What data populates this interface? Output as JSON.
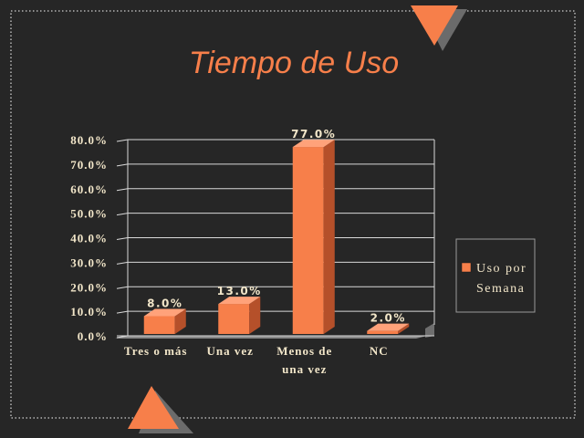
{
  "slide": {
    "title": "Tiempo de Uso",
    "accent_color": "#f77f4a",
    "shadow_color": "#6b6b6b",
    "background_color": "#262626",
    "text_color": "#f2e6c9"
  },
  "chart_data": {
    "type": "bar",
    "title": "",
    "xlabel": "",
    "ylabel": "",
    "categories": [
      "Tres o más",
      "Una vez",
      "Menos de\nuna vez",
      "NC"
    ],
    "series": [
      {
        "name": "Uso por Semana",
        "values": [
          8.0,
          13.0,
          77.0,
          2.0
        ],
        "data_labels": [
          "8.0%",
          "13.0%",
          "77.0%",
          "2.0%"
        ],
        "color": "#f77f4a"
      }
    ],
    "yticks": [
      "0.0%",
      "10.0%",
      "20.0%",
      "30.0%",
      "40.0%",
      "50.0%",
      "60.0%",
      "70.0%",
      "80.0%"
    ],
    "ylim": [
      0,
      80
    ],
    "grid": true,
    "legend_position": "right",
    "legend_label_lines": [
      "Uso por",
      "Semana"
    ]
  }
}
